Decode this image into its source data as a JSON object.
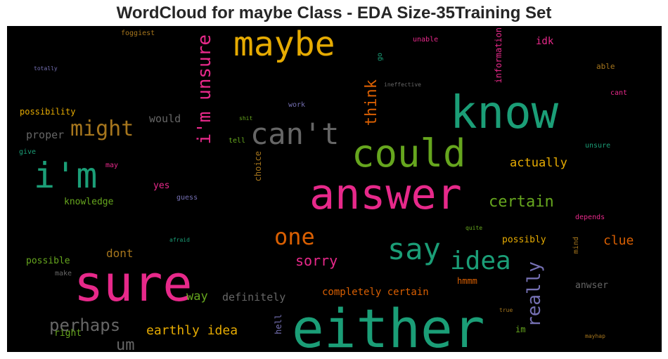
{
  "chart_data": {
    "type": "wordcloud",
    "title": "WordCloud for maybe Class - EDA Size-35Training Set",
    "background": "#000000",
    "palette": [
      "#1b9e77",
      "#d95f02",
      "#7570b3",
      "#e7298a",
      "#66a61e",
      "#e6ab02",
      "#a6761d",
      "#666666"
    ],
    "words": [
      {
        "text": "either",
        "color": "#1b9e77"
      },
      {
        "text": "sure",
        "color": "#e7298a"
      },
      {
        "text": "answer",
        "color": "#e7298a"
      },
      {
        "text": "know",
        "color": "#1b9e77"
      },
      {
        "text": "could",
        "color": "#66a61e"
      },
      {
        "text": "maybe",
        "color": "#e6ab02"
      },
      {
        "text": "i'm",
        "color": "#1b9e77"
      },
      {
        "text": "can't",
        "color": "#666666"
      },
      {
        "text": "say",
        "color": "#1b9e77"
      },
      {
        "text": "idea",
        "color": "#1b9e77"
      },
      {
        "text": "i'm unsure",
        "color": "#e7298a"
      },
      {
        "text": "one",
        "color": "#d95f02"
      },
      {
        "text": "might",
        "color": "#a6761d"
      },
      {
        "text": "perhaps",
        "color": "#666666"
      },
      {
        "text": "really",
        "color": "#7570b3"
      },
      {
        "text": "certain",
        "color": "#66a61e"
      },
      {
        "text": "think",
        "color": "#d95f02"
      },
      {
        "text": "earthly idea",
        "color": "#e6ab02"
      },
      {
        "text": "um",
        "color": "#666666"
      },
      {
        "text": "sorry",
        "color": "#e7298a"
      },
      {
        "text": "clue",
        "color": "#d95f02"
      },
      {
        "text": "actually",
        "color": "#e6ab02"
      },
      {
        "text": "way",
        "color": "#66a61e"
      },
      {
        "text": "dont",
        "color": "#a6761d"
      },
      {
        "text": "would",
        "color": "#666666"
      },
      {
        "text": "proper",
        "color": "#666666"
      },
      {
        "text": "definitely",
        "color": "#666666"
      },
      {
        "text": "completely certain",
        "color": "#d95f02"
      },
      {
        "text": "knowledge",
        "color": "#66a61e"
      },
      {
        "text": "possible",
        "color": "#66a61e"
      },
      {
        "text": "possibility",
        "color": "#e6ab02"
      },
      {
        "text": "possibly",
        "color": "#e6ab02"
      },
      {
        "text": "information",
        "color": "#e7298a"
      },
      {
        "text": "idk",
        "color": "#e7298a"
      },
      {
        "text": "anwser",
        "color": "#666666"
      },
      {
        "text": "right",
        "color": "#66a61e"
      },
      {
        "text": "hmmm",
        "color": "#d95f02"
      },
      {
        "text": "im",
        "color": "#66a61e"
      },
      {
        "text": "hell",
        "color": "#7570b3"
      },
      {
        "text": "yes",
        "color": "#e7298a"
      },
      {
        "text": "choice",
        "color": "#a6761d"
      },
      {
        "text": "foggiest",
        "color": "#a6761d"
      },
      {
        "text": "unable",
        "color": "#e7298a"
      },
      {
        "text": "able",
        "color": "#a6761d"
      },
      {
        "text": "cant",
        "color": "#e7298a"
      },
      {
        "text": "unsure",
        "color": "#1b9e77"
      },
      {
        "text": "depends",
        "color": "#e7298a"
      },
      {
        "text": "work",
        "color": "#7570b3"
      },
      {
        "text": "tell",
        "color": "#66a61e"
      },
      {
        "text": "guess",
        "color": "#7570b3"
      },
      {
        "text": "give",
        "color": "#1b9e77"
      },
      {
        "text": "make",
        "color": "#666666"
      },
      {
        "text": "may",
        "color": "#e7298a"
      },
      {
        "text": "go",
        "color": "#1b9e77"
      },
      {
        "text": "mind",
        "color": "#a6761d"
      },
      {
        "text": "totally",
        "color": "#7570b3"
      },
      {
        "text": "ineffective",
        "color": "#666666"
      },
      {
        "text": "shit",
        "color": "#66a61e"
      },
      {
        "text": "quite",
        "color": "#66a61e"
      },
      {
        "text": "afraid",
        "color": "#1b9e77"
      },
      {
        "text": "true",
        "color": "#a6761d"
      },
      {
        "text": "mayhap",
        "color": "#a6761d"
      }
    ]
  }
}
